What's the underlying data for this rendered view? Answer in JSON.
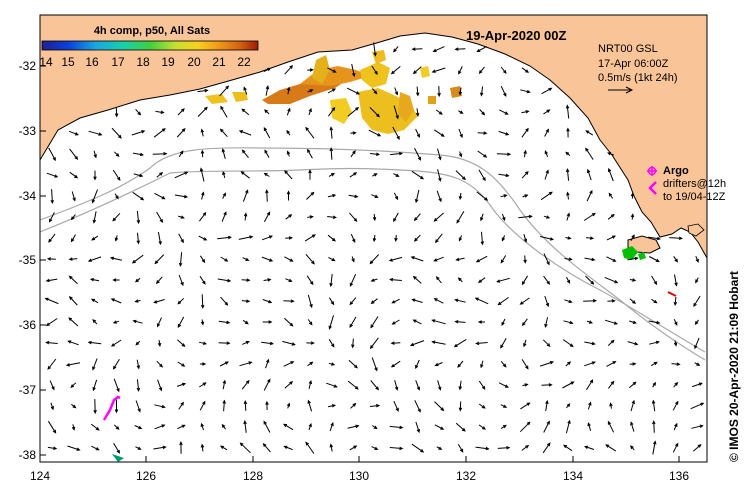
{
  "title": "19-Apr-2020 00Z",
  "sst_bar": {
    "label": "4h comp, p50, All Sats",
    "ticks": [
      "14",
      "15",
      "16",
      "17",
      "18",
      "19",
      "20",
      "21",
      "22"
    ]
  },
  "info": {
    "line1": "NRT00 GSL",
    "line2": "17-Apr 06:00Z",
    "line3": "0.5m/s (1kt 24h)"
  },
  "legend": {
    "argo": "Argo",
    "drifters": "drifters@12h",
    "drifters_to": "to 19/04-12Z"
  },
  "credit": "© IMOS 20-Apr-2020 21:09 Hobart",
  "axes": {
    "lat_labels": [
      "-32",
      "-33",
      "-34",
      "-35",
      "-36",
      "-37",
      "-38"
    ],
    "lon_labels": [
      "124",
      "126",
      "128",
      "130",
      "132",
      "134",
      "136"
    ]
  },
  "colors": {
    "land": "#f9c497",
    "isobath": "#a9a9a9",
    "argo": "#ff00ff",
    "drifter_red": "#e00000",
    "sst_cool": "#00c000"
  }
}
